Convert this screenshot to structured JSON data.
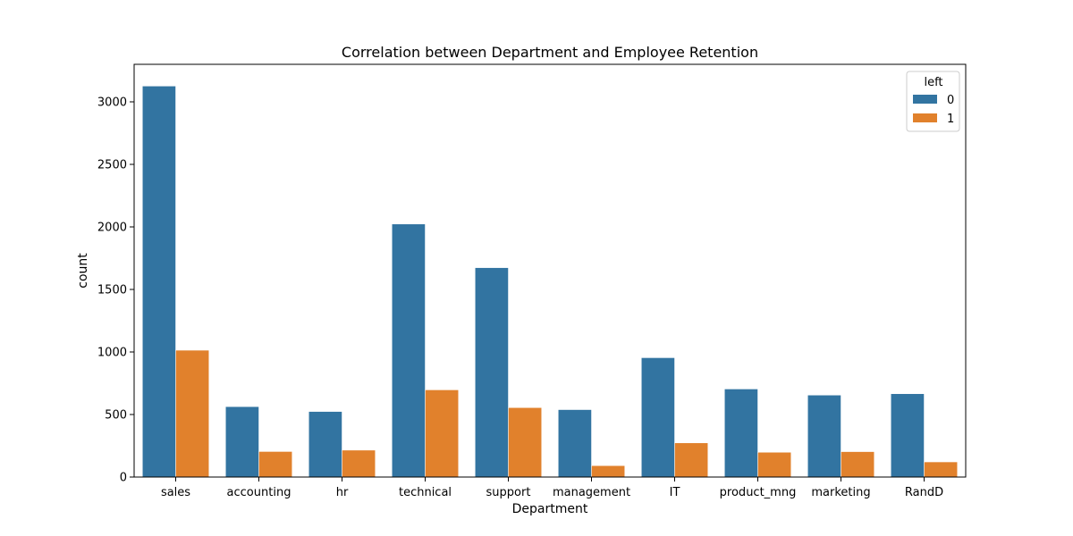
{
  "chart_data": {
    "type": "bar",
    "title": "Correlation between Department and Employee Retention",
    "xlabel": "Department",
    "ylabel": "count",
    "categories": [
      "sales",
      "accounting",
      "hr",
      "technical",
      "support",
      "management",
      "IT",
      "product_mng",
      "marketing",
      "RandD"
    ],
    "series": [
      {
        "name": "0",
        "color": "#3274a1",
        "values": [
          3126,
          563,
          524,
          2023,
          1674,
          539,
          954,
          704,
          655,
          666
        ]
      },
      {
        "name": "1",
        "color": "#e1812c",
        "values": [
          1014,
          204,
          215,
          697,
          555,
          91,
          273,
          198,
          203,
          121
        ]
      }
    ],
    "ylim": [
      0,
      3300
    ],
    "yticks": [
      0,
      500,
      1000,
      1500,
      2000,
      2500,
      3000
    ],
    "legend": {
      "title": "left",
      "placement": "top-right"
    },
    "grid": false
  }
}
